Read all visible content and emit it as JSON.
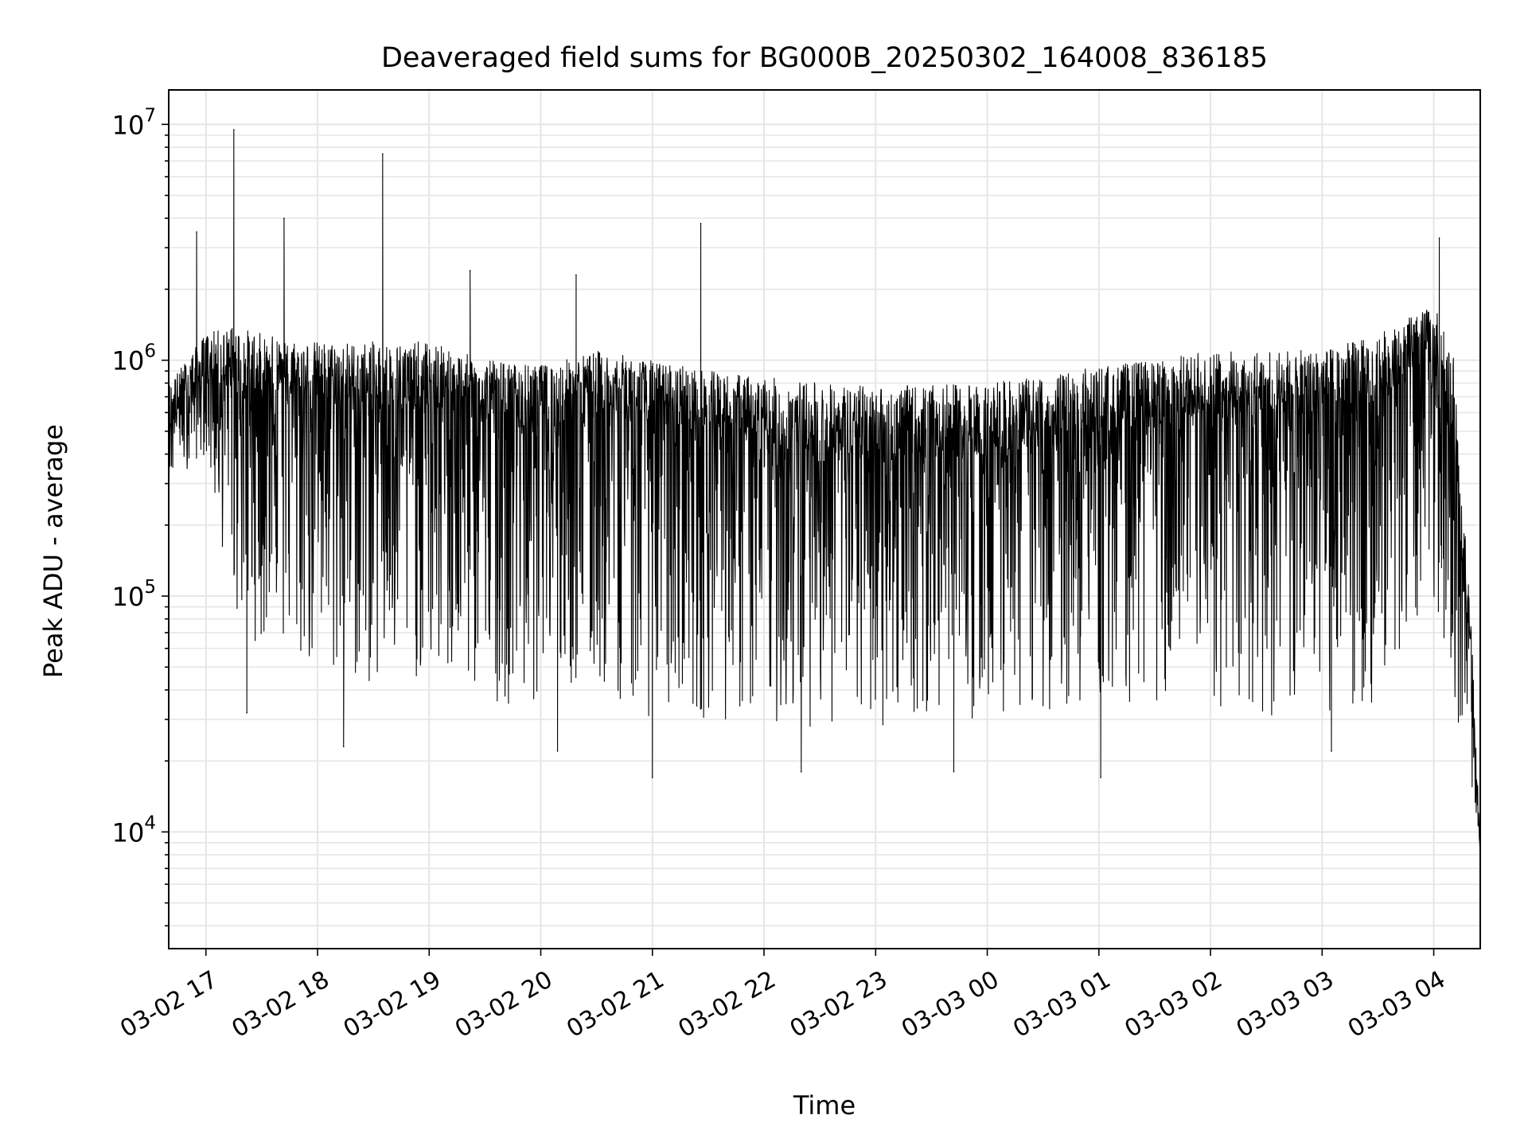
{
  "chart_data": {
    "type": "line",
    "title": "Deaveraged field sums for BG000B_20250302_164008_836185",
    "xlabel": "Time",
    "ylabel": "Peak ADU - average",
    "yscale": "log",
    "ylim": [
      3200,
      14000000
    ],
    "xlim": [
      "03-02 16:40",
      "03-03 04:25"
    ],
    "grid": "major and minor, light gray",
    "legend": "none",
    "line_color": "#000000",
    "x_ticks": [
      "03-02 17",
      "03-02 18",
      "03-02 19",
      "03-02 20",
      "03-02 21",
      "03-02 22",
      "03-02 23",
      "03-03 00",
      "03-03 01",
      "03-03 02",
      "03-03 03",
      "03-03 04"
    ],
    "y_ticks": [
      {
        "value": 10000,
        "base": "10",
        "exp": "4"
      },
      {
        "value": 100000,
        "base": "10",
        "exp": "5"
      },
      {
        "value": 1000000,
        "base": "10",
        "exp": "6"
      },
      {
        "value": 10000000,
        "base": "10",
        "exp": "7"
      }
    ],
    "series": [
      {
        "x": [
          "03-02 16:40",
          "03-02 17:00",
          "03-02 17:15",
          "03-02 17:30",
          "03-02 18:00",
          "03-02 18:30",
          "03-02 19:00",
          "03-02 19:30",
          "03-02 20:00",
          "03-02 20:30",
          "03-02 21:00",
          "03-02 21:30",
          "03-02 22:00",
          "03-02 22:30",
          "03-02 23:00",
          "03-02 23:30",
          "03-03 00:00",
          "03-03 00:30",
          "03-03 01:00",
          "03-03 01:30",
          "03-03 02:00",
          "03-03 02:30",
          "03-03 03:00",
          "03-03 03:30",
          "03-03 04:00",
          "03-03 04:10",
          "03-03 04:20",
          "03-03 04:25"
        ],
        "upper": [
          800000,
          1300000,
          1400000,
          1300000,
          1200000,
          1200000,
          1200000,
          1000000,
          950000,
          1100000,
          1000000,
          900000,
          850000,
          800000,
          780000,
          780000,
          800000,
          850000,
          950000,
          1000000,
          1100000,
          1100000,
          1100000,
          1300000,
          1700000,
          1200000,
          80000,
          9000
        ],
        "median": [
          550000,
          900000,
          800000,
          750000,
          700000,
          650000,
          650000,
          600000,
          550000,
          650000,
          550000,
          500000,
          450000,
          420000,
          400000,
          400000,
          420000,
          450000,
          500000,
          550000,
          600000,
          600000,
          600000,
          700000,
          1000000,
          500000,
          50000,
          8000
        ],
        "lower": [
          300000,
          400000,
          80000,
          60000,
          45000,
          40000,
          45000,
          35000,
          35000,
          40000,
          30000,
          30000,
          28000,
          28000,
          27000,
          28000,
          30000,
          32000,
          35000,
          35000,
          33000,
          30000,
          30000,
          35000,
          100000,
          40000,
          15000,
          8000
        ],
        "spikes": [
          {
            "x": "03-02 16:55",
            "y": 3500000
          },
          {
            "x": "03-02 17:15",
            "y": 9500000
          },
          {
            "x": "03-02 17:42",
            "y": 4000000
          },
          {
            "x": "03-02 18:35",
            "y": 7500000
          },
          {
            "x": "03-02 19:22",
            "y": 2400000
          },
          {
            "x": "03-02 20:19",
            "y": 2300000
          },
          {
            "x": "03-02 21:26",
            "y": 3800000
          },
          {
            "x": "03-03 04:03",
            "y": 3300000
          }
        ],
        "dips": [
          {
            "x": "03-02 17:22",
            "y": 32000
          },
          {
            "x": "03-02 18:14",
            "y": 23000
          },
          {
            "x": "03-02 20:09",
            "y": 22000
          },
          {
            "x": "03-02 21:00",
            "y": 17000
          },
          {
            "x": "03-02 22:20",
            "y": 18000
          },
          {
            "x": "03-02 23:42",
            "y": 18000
          },
          {
            "x": "03-03 01:01",
            "y": 17000
          },
          {
            "x": "03-03 03:05",
            "y": 22000
          }
        ]
      }
    ]
  }
}
